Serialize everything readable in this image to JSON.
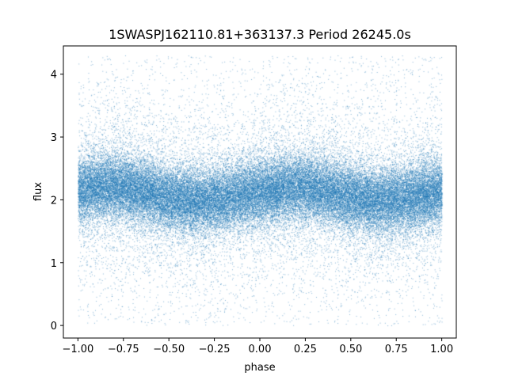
{
  "chart_data": {
    "type": "scatter",
    "title": "1SWASPJ162110.81+363137.3 Period 26245.0s",
    "xlabel": "phase",
    "ylabel": "flux",
    "xlim": [
      -1.08,
      1.08
    ],
    "ylim": [
      -0.2,
      4.45
    ],
    "x_ticks": [
      -1.0,
      -0.75,
      -0.5,
      -0.25,
      0.0,
      0.25,
      0.5,
      0.75,
      1.0
    ],
    "x_tick_labels": [
      "−1.00",
      "−0.75",
      "−0.50",
      "−0.25",
      "0.00",
      "0.25",
      "0.50",
      "0.75",
      "1.00"
    ],
    "y_ticks": [
      0,
      1,
      2,
      3,
      4
    ],
    "y_tick_labels": [
      "0",
      "1",
      "2",
      "3",
      "4"
    ],
    "grid": false,
    "legend": "none",
    "marker_color": "#1f77b4",
    "series": [
      {
        "phase_range": [
          -1.0,
          1.0
        ],
        "flux_range": [
          0.0,
          4.3
        ],
        "mean_flux_curve": {
          "phase": [
            -1.0,
            -0.85,
            -0.75,
            -0.6,
            -0.5,
            -0.35,
            -0.25,
            -0.1,
            0.0,
            0.15,
            0.25,
            0.4,
            0.5,
            0.65,
            0.75,
            0.9,
            1.0
          ],
          "flux": [
            2.15,
            2.22,
            2.2,
            2.12,
            2.02,
            1.98,
            2.0,
            2.08,
            2.12,
            2.2,
            2.2,
            2.12,
            2.05,
            1.98,
            2.0,
            2.08,
            2.15
          ]
        },
        "core_band_halfwidth": 0.35,
        "n_points_approx": 60000
      }
    ]
  }
}
